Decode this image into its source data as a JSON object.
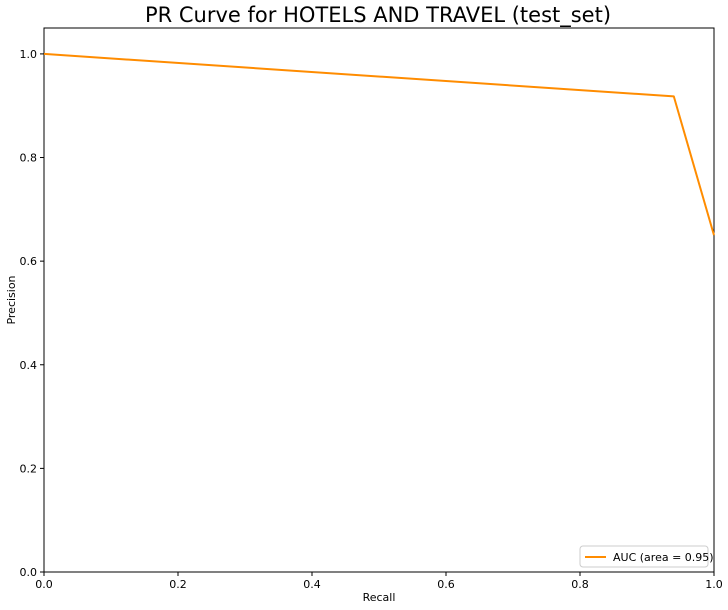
{
  "chart_data": {
    "type": "line",
    "title": "PR Curve for HOTELS AND TRAVEL (test_set)",
    "xlabel": "Recall",
    "ylabel": "Precision",
    "xlim": [
      0.0,
      1.0
    ],
    "ylim": [
      0.0,
      1.05
    ],
    "xticks": [
      "0.0",
      "0.2",
      "0.4",
      "0.6",
      "0.8",
      "1.0"
    ],
    "yticks": [
      "0.0",
      "0.2",
      "0.4",
      "0.6",
      "0.8",
      "1.0"
    ],
    "grid": false,
    "legend_position": "lower-right",
    "series": [
      {
        "name": "AUC (area = 0.95)",
        "color": "#ff8c00",
        "x": [
          0.0,
          0.94,
          1.0
        ],
        "y": [
          1.0,
          0.918,
          0.65
        ]
      }
    ]
  }
}
